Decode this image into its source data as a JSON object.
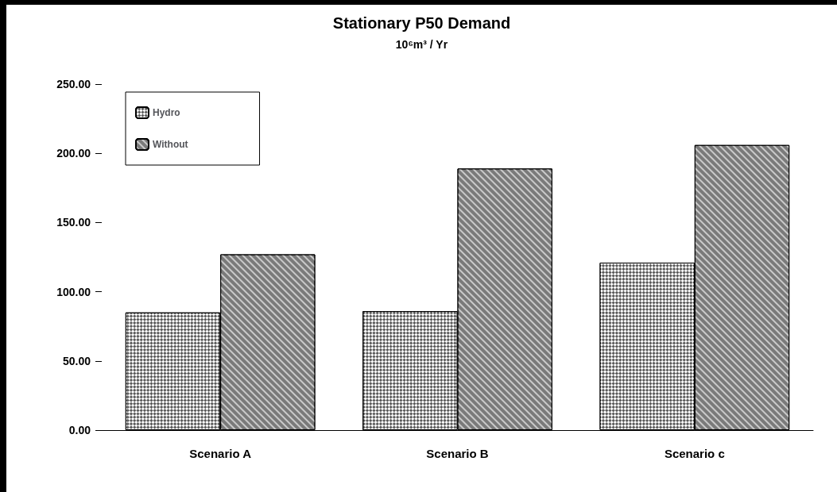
{
  "chart_data": {
    "type": "bar",
    "title": "Stationary P50 Demand",
    "subtitle": "10⁶m³ / Yr",
    "categories": [
      "Scenario A",
      "Scenario B",
      "Scenario c"
    ],
    "series": [
      {
        "name": "Hydro",
        "color": "#5a5a5a",
        "values": [
          85,
          86,
          121
        ]
      },
      {
        "name": "Without",
        "color": "#7a7a7a",
        "values": [
          127,
          189,
          206
        ]
      }
    ],
    "ylim": [
      0,
      250
    ],
    "yticks": [
      {
        "value": 0,
        "label": "0.00"
      },
      {
        "value": 50,
        "label": "50.00"
      },
      {
        "value": 100,
        "label": "100.00"
      },
      {
        "value": 150,
        "label": "150.00"
      },
      {
        "value": 200,
        "label": "200.00"
      },
      {
        "value": 250,
        "label": "250.00"
      }
    ],
    "grid": false,
    "legend": "top left"
  }
}
